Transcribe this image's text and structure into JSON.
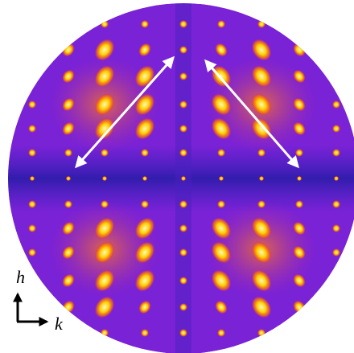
{
  "axes": {
    "vertical": "h",
    "horizontal": "k"
  }
}
